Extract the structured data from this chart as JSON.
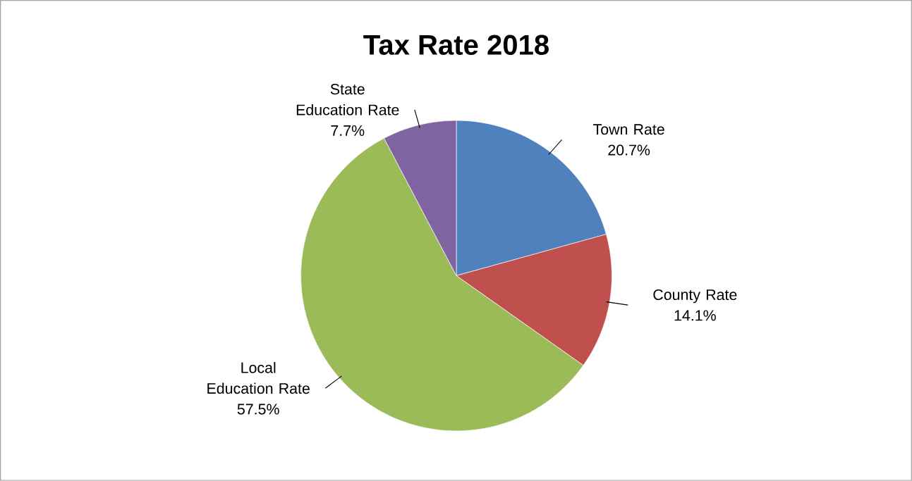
{
  "chart_data": {
    "type": "pie",
    "title": "Tax Rate 2018",
    "categories": [
      "Town Rate",
      "County Rate",
      "Local Education Rate",
      "State Education Rate"
    ],
    "values": [
      20.7,
      14.1,
      57.5,
      7.7
    ],
    "colors": [
      "#4f81bd",
      "#c0504d",
      "#9bbb59",
      "#8064a2"
    ],
    "value_labels": [
      "20.7%",
      "14.1%",
      "57.5%",
      "7.7%"
    ]
  }
}
